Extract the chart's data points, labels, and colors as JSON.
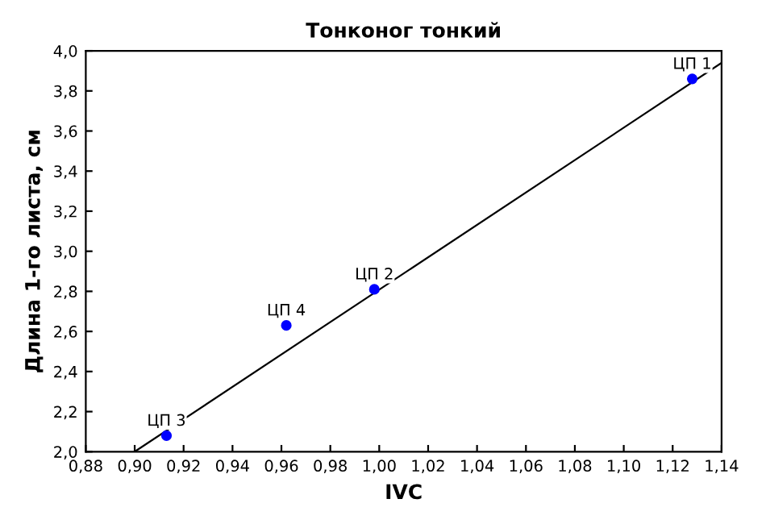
{
  "chart_data": {
    "type": "scatter",
    "title": "Тонконог тонкий",
    "xlabel": "IVC",
    "ylabel": "Длина 1-го листа, см",
    "series": [
      {
        "color": "#0000ff",
        "marker": "circle",
        "x": [
          1.128,
          0.998,
          0.913,
          0.962
        ],
        "values": [
          3.86,
          2.81,
          2.08,
          2.63
        ]
      },
      {
        "type": "line",
        "color": "#000000",
        "marker": "none",
        "x": [
          0.9,
          1.14
        ],
        "values": [
          2.0,
          3.94
        ]
      }
    ],
    "annotations": [
      {
        "text": "ЦП 1",
        "x": 1.128,
        "y": 3.86
      },
      {
        "text": "ЦП 2",
        "x": 0.998,
        "y": 2.81
      },
      {
        "text": "ЦП 3",
        "x": 0.913,
        "y": 2.08
      },
      {
        "text": "ЦП 4",
        "x": 0.962,
        "y": 2.63
      }
    ],
    "xlim": [
      0.88,
      1.14
    ],
    "ylim": [
      2.0,
      4.0
    ],
    "xticks": [
      {
        "value": 0.88,
        "label": "0,88"
      },
      {
        "value": 0.9,
        "label": "0,90"
      },
      {
        "value": 0.92,
        "label": "0,92"
      },
      {
        "value": 0.94,
        "label": "0,94"
      },
      {
        "value": 0.96,
        "label": "0,96"
      },
      {
        "value": 0.98,
        "label": "0,98"
      },
      {
        "value": 1.0,
        "label": "1,00"
      },
      {
        "value": 1.02,
        "label": "1,02"
      },
      {
        "value": 1.04,
        "label": "1,04"
      },
      {
        "value": 1.06,
        "label": "1,06"
      },
      {
        "value": 1.08,
        "label": "1,08"
      },
      {
        "value": 1.1,
        "label": "1,10"
      },
      {
        "value": 1.12,
        "label": "1,12"
      },
      {
        "value": 1.14,
        "label": "1,14"
      }
    ],
    "yticks": [
      {
        "value": 2.0,
        "label": "2,0"
      },
      {
        "value": 2.2,
        "label": "2,2"
      },
      {
        "value": 2.4,
        "label": "2,4"
      },
      {
        "value": 2.6,
        "label": "2,6"
      },
      {
        "value": 2.8,
        "label": "2,8"
      },
      {
        "value": 3.0,
        "label": "3,0"
      },
      {
        "value": 3.2,
        "label": "3,2"
      },
      {
        "value": 3.4,
        "label": "3,4"
      },
      {
        "value": 3.6,
        "label": "3,6"
      },
      {
        "value": 3.8,
        "label": "3,8"
      },
      {
        "value": 4.0,
        "label": "4,0"
      }
    ],
    "grid": false,
    "legend": false
  }
}
